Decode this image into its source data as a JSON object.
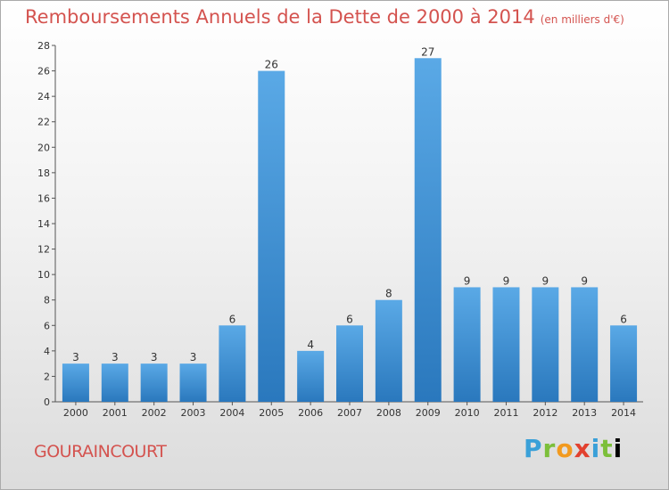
{
  "header": {
    "title": "Remboursements Annuels de la Dette de 2000 à 2014",
    "unit": "(en milliers d'€)"
  },
  "footer": {
    "town": "GOURAINCOURT",
    "logo_letters": [
      "P",
      "r",
      "o",
      "x",
      "i",
      "t",
      "i"
    ]
  },
  "colors": {
    "title": "#d4534f",
    "bar_top": "#5aa9e6",
    "bar_bottom": "#2a78bd",
    "axis": "#333333"
  },
  "chart_data": {
    "type": "bar",
    "title": "Remboursements Annuels de la Dette de 2000 à 2014",
    "ylabel": "(en milliers d'€)",
    "xlabel": "",
    "categories": [
      "2000",
      "2001",
      "2002",
      "2003",
      "2004",
      "2005",
      "2006",
      "2007",
      "2008",
      "2009",
      "2010",
      "2011",
      "2012",
      "2013",
      "2014"
    ],
    "values": [
      3,
      3,
      3,
      3,
      6,
      26,
      4,
      6,
      8,
      27,
      9,
      9,
      9,
      9,
      6
    ],
    "ylim": [
      0,
      28
    ],
    "yticks": [
      0,
      2,
      4,
      6,
      8,
      10,
      12,
      14,
      16,
      18,
      20,
      22,
      24,
      26,
      28
    ],
    "data_labels": true,
    "grid": false
  }
}
